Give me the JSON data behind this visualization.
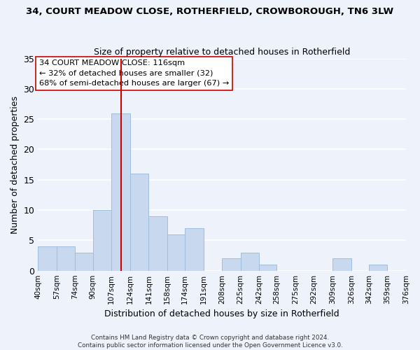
{
  "title": "34, COURT MEADOW CLOSE, ROTHERFIELD, CROWBOROUGH, TN6 3LW",
  "subtitle": "Size of property relative to detached houses in Rotherfield",
  "xlabel": "Distribution of detached houses by size in Rotherfield",
  "ylabel": "Number of detached properties",
  "bar_edges": [
    40,
    57,
    74,
    90,
    107,
    124,
    141,
    158,
    174,
    191,
    208,
    225,
    242,
    258,
    275,
    292,
    309,
    326,
    342,
    359,
    376
  ],
  "bar_heights": [
    4,
    4,
    3,
    10,
    26,
    16,
    9,
    6,
    7,
    0,
    2,
    3,
    1,
    0,
    0,
    0,
    2,
    0,
    1,
    0
  ],
  "tick_labels": [
    "40sqm",
    "57sqm",
    "74sqm",
    "90sqm",
    "107sqm",
    "124sqm",
    "141sqm",
    "158sqm",
    "174sqm",
    "191sqm",
    "208sqm",
    "225sqm",
    "242sqm",
    "258sqm",
    "275sqm",
    "292sqm",
    "309sqm",
    "326sqm",
    "342sqm",
    "359sqm",
    "376sqm"
  ],
  "bar_color": "#c8d8ef",
  "bar_edge_color": "#a0bedd",
  "vline_x": 116,
  "vline_color": "#cc0000",
  "ylim": [
    0,
    35
  ],
  "yticks": [
    0,
    5,
    10,
    15,
    20,
    25,
    30,
    35
  ],
  "annotation_title": "34 COURT MEADOW CLOSE: 116sqm",
  "annotation_line1": "← 32% of detached houses are smaller (32)",
  "annotation_line2": "68% of semi-detached houses are larger (67) →",
  "footer_line1": "Contains HM Land Registry data © Crown copyright and database right 2024.",
  "footer_line2": "Contains public sector information licensed under the Open Government Licence v3.0.",
  "background_color": "#eef2fb",
  "grid_color": "#ffffff"
}
